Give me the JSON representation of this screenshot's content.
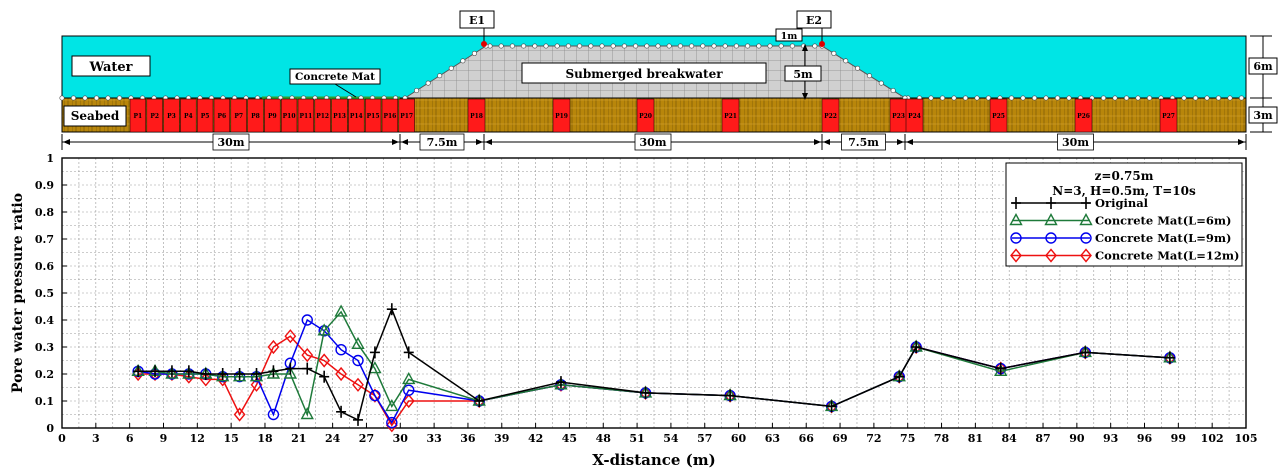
{
  "diagram": {
    "labels": {
      "water": "Water",
      "seabed": "Seabed",
      "concrete_mat": "Concrete Mat",
      "breakwater": "Submerged breakwater",
      "e1": "E1",
      "e2": "E2",
      "top_width": "1m",
      "depth_5m": "5m",
      "depth_6m": "6m",
      "depth_3m": "3m"
    },
    "dimensions": [
      "30m",
      "7.5m",
      "30m",
      "7.5m",
      "30m"
    ],
    "sensors_mat": [
      "P1",
      "P2",
      "P3",
      "P4",
      "P5",
      "P6",
      "P7",
      "P8",
      "P9",
      "P10",
      "P11",
      "P12",
      "P13",
      "P14",
      "P15",
      "P16",
      "P17"
    ],
    "sensors_other": [
      "P18",
      "P19",
      "P20",
      "P21",
      "P22",
      "P23",
      "P24",
      "P25",
      "P26",
      "P27"
    ],
    "colors": {
      "water": "#00e5e5",
      "seabed": "#b8860b",
      "sensor": "#ff1a1a",
      "breakwater": "#c8c8c8",
      "mat": "#2e9e2e"
    }
  },
  "chart_data": {
    "type": "line",
    "xlabel": "X-distance (m)",
    "ylabel": "Pore water pressure ratio",
    "xlim": [
      0,
      105
    ],
    "ylim": [
      0,
      1
    ],
    "xticks": [
      0,
      3,
      6,
      9,
      12,
      15,
      18,
      21,
      24,
      27,
      30,
      33,
      36,
      39,
      42,
      45,
      48,
      51,
      54,
      57,
      60,
      63,
      66,
      69,
      72,
      75,
      78,
      81,
      84,
      87,
      90,
      93,
      96,
      99,
      102,
      105
    ],
    "yticks": [
      0,
      0.1,
      0.2,
      0.3,
      0.4,
      0.5,
      0.6,
      0.7,
      0.8,
      0.9,
      1
    ],
    "grid": true,
    "legend_position": "top-right",
    "legend_header": [
      "z=0.75m",
      "N=3, H=0.5m, T=10s"
    ],
    "series": [
      {
        "name": "Original",
        "color": "#000000",
        "marker": "plus",
        "x": [
          6.75,
          8.25,
          9.75,
          11.25,
          12.75,
          14.25,
          15.75,
          17.25,
          18.75,
          20.25,
          21.75,
          23.25,
          24.75,
          26.25,
          27.75,
          29.25,
          30.75,
          37.0,
          44.25,
          51.75,
          59.25,
          68.25,
          74.25,
          75.75,
          83.25,
          90.75,
          98.25
        ],
        "y": [
          0.21,
          0.21,
          0.21,
          0.21,
          0.2,
          0.2,
          0.2,
          0.2,
          0.21,
          0.22,
          0.22,
          0.19,
          0.06,
          0.03,
          0.28,
          0.44,
          0.28,
          0.1,
          0.17,
          0.13,
          0.12,
          0.08,
          0.19,
          0.3,
          0.22,
          0.28,
          0.26
        ]
      },
      {
        "name": "Concrete Mat(L=6m)",
        "color": "#1e7a3a",
        "marker": "triangle",
        "x": [
          6.75,
          8.25,
          9.75,
          11.25,
          12.75,
          14.25,
          15.75,
          17.25,
          18.75,
          20.25,
          21.75,
          23.25,
          24.75,
          26.25,
          27.75,
          29.25,
          30.75,
          37.0,
          44.25,
          51.75,
          59.25,
          68.25,
          74.25,
          75.75,
          83.25,
          90.75,
          98.25
        ],
        "y": [
          0.21,
          0.21,
          0.2,
          0.2,
          0.2,
          0.19,
          0.19,
          0.19,
          0.2,
          0.2,
          0.05,
          0.36,
          0.43,
          0.31,
          0.22,
          0.08,
          0.18,
          0.1,
          0.16,
          0.13,
          0.12,
          0.08,
          0.19,
          0.3,
          0.21,
          0.28,
          0.26
        ]
      },
      {
        "name": "Concrete Mat(L=9m)",
        "color": "#0000ee",
        "marker": "circle",
        "x": [
          6.75,
          8.25,
          9.75,
          11.25,
          12.75,
          14.25,
          15.75,
          17.25,
          18.75,
          20.25,
          21.75,
          23.25,
          24.75,
          26.25,
          27.75,
          29.25,
          30.75,
          37.0,
          44.25,
          51.75,
          59.25,
          68.25,
          74.25,
          75.75,
          83.25,
          90.75,
          98.25
        ],
        "y": [
          0.21,
          0.2,
          0.2,
          0.2,
          0.2,
          0.19,
          0.19,
          0.19,
          0.05,
          0.24,
          0.4,
          0.36,
          0.29,
          0.25,
          0.12,
          0.02,
          0.14,
          0.1,
          0.16,
          0.13,
          0.12,
          0.08,
          0.19,
          0.3,
          0.22,
          0.28,
          0.26
        ]
      },
      {
        "name": "Concrete Mat(L=12m)",
        "color": "#ee1111",
        "marker": "diamond",
        "x": [
          6.75,
          8.25,
          9.75,
          11.25,
          12.75,
          14.25,
          15.75,
          17.25,
          18.75,
          20.25,
          21.75,
          23.25,
          24.75,
          26.25,
          27.75,
          29.25,
          30.75,
          37.0,
          44.25,
          51.75,
          59.25,
          68.25,
          74.25,
          75.75,
          83.25,
          90.75,
          98.25
        ],
        "y": [
          0.2,
          0.2,
          0.2,
          0.19,
          0.18,
          0.18,
          0.05,
          0.16,
          0.3,
          0.34,
          0.27,
          0.25,
          0.2,
          0.16,
          0.12,
          0.01,
          0.1,
          0.1,
          0.16,
          0.13,
          0.12,
          0.08,
          0.19,
          0.3,
          0.22,
          0.28,
          0.26
        ]
      }
    ]
  }
}
